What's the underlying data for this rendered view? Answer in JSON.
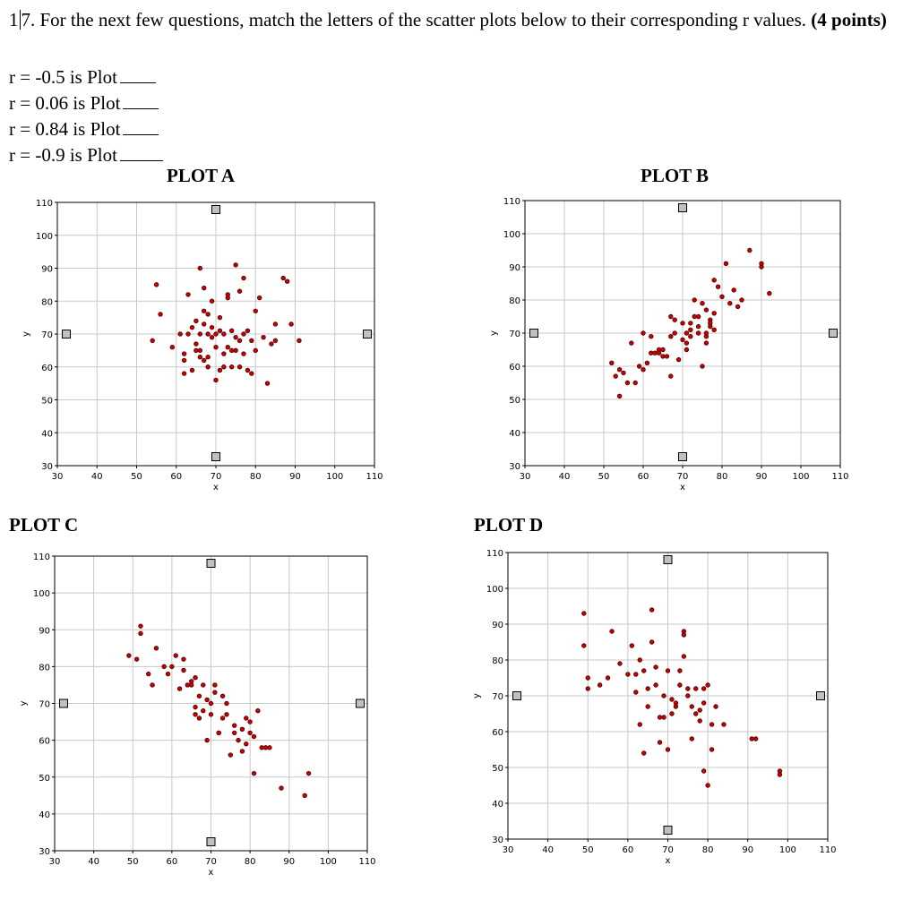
{
  "question": {
    "number_prefix": "1",
    "number_suffix": "7.",
    "text": " For the next few questions, match the letters of the scatter plots below to their corresponding r values. ",
    "points": "(4 points)"
  },
  "answers": [
    {
      "text": "r = -0.5 is Plot"
    },
    {
      "text": "r = 0.06 is Plot"
    },
    {
      "text": "r = 0.84 is Plot"
    },
    {
      "text": "r = -0.9 is Plot"
    }
  ],
  "colors": {
    "grid": "#c8c8c8",
    "point_fill": "#cc0000",
    "point_stroke": "#400000",
    "handle_fill": "#c0c0c0"
  },
  "chart_data": [
    {
      "type": "scatter",
      "title": "PLOT A",
      "xlabel": "x",
      "ylabel": "y",
      "xlim": [
        30,
        110
      ],
      "ylim": [
        30,
        110
      ],
      "xticks": [
        30,
        40,
        50,
        60,
        70,
        80,
        90,
        100,
        110
      ],
      "yticks": [
        30,
        40,
        50,
        60,
        70,
        80,
        90,
        100,
        110
      ],
      "grid": true,
      "x": [
        55,
        56,
        54,
        59,
        61,
        62,
        62,
        62,
        63,
        63,
        64,
        64,
        65,
        65,
        65,
        66,
        66,
        66,
        67,
        67,
        67,
        67,
        68,
        68,
        68,
        68,
        69,
        69,
        69,
        70,
        70,
        70,
        71,
        71,
        71,
        72,
        72,
        72,
        73,
        73,
        73,
        74,
        74,
        74,
        75,
        75,
        75,
        76,
        76,
        76,
        77,
        77,
        77,
        78,
        78,
        79,
        79,
        80,
        80,
        81,
        82,
        83,
        84,
        85,
        85,
        87,
        88,
        89,
        91,
        66
      ],
      "y": [
        85,
        76,
        68,
        66,
        70,
        58,
        64,
        62,
        70,
        82,
        59,
        72,
        67,
        65,
        74,
        63,
        70,
        90,
        77,
        73,
        62,
        84,
        60,
        63,
        76,
        70,
        69,
        80,
        72,
        56,
        66,
        70,
        75,
        59,
        71,
        64,
        60,
        70,
        81,
        66,
        82,
        60,
        65,
        71,
        91,
        65,
        69,
        60,
        68,
        83,
        64,
        70,
        87,
        59,
        71,
        58,
        68,
        77,
        65,
        81,
        69,
        55,
        67,
        68,
        73,
        87,
        86,
        73,
        68,
        65
      ]
    },
    {
      "type": "scatter",
      "title": "PLOT B",
      "xlabel": "x",
      "ylabel": "y",
      "xlim": [
        30,
        110
      ],
      "ylim": [
        30,
        110
      ],
      "xticks": [
        30,
        40,
        50,
        60,
        70,
        80,
        90,
        100,
        110
      ],
      "yticks": [
        30,
        40,
        50,
        60,
        70,
        80,
        90,
        100,
        110
      ],
      "grid": true,
      "x": [
        52,
        53,
        54,
        54,
        55,
        56,
        57,
        58,
        59,
        60,
        60,
        61,
        62,
        62,
        63,
        64,
        64,
        65,
        65,
        66,
        67,
        67,
        67,
        68,
        68,
        69,
        70,
        70,
        71,
        71,
        71,
        72,
        72,
        72,
        73,
        73,
        74,
        74,
        74,
        75,
        75,
        76,
        76,
        76,
        77,
        77,
        77,
        78,
        78,
        78,
        79,
        80,
        81,
        82,
        83,
        84,
        85,
        87,
        90,
        90,
        92,
        76
      ],
      "y": [
        61,
        57,
        51,
        59,
        58,
        55,
        67,
        55,
        60,
        59,
        70,
        61,
        64,
        69,
        64,
        65,
        64,
        65,
        63,
        63,
        75,
        69,
        57,
        70,
        74,
        62,
        73,
        68,
        70,
        67,
        65,
        73,
        71,
        69,
        75,
        80,
        70,
        72,
        75,
        60,
        79,
        70,
        69,
        77,
        74,
        72,
        73,
        76,
        71,
        86,
        84,
        81,
        91,
        79,
        83,
        78,
        80,
        95,
        90,
        91,
        82,
        67
      ]
    },
    {
      "type": "scatter",
      "title": "PLOT C",
      "xlabel": "x",
      "ylabel": "y",
      "xlim": [
        30,
        110
      ],
      "ylim": [
        30,
        110
      ],
      "xticks": [
        30,
        40,
        50,
        60,
        70,
        80,
        90,
        100,
        110
      ],
      "yticks": [
        30,
        40,
        50,
        60,
        70,
        80,
        90,
        100,
        110
      ],
      "grid": true,
      "x": [
        49,
        51,
        52,
        52,
        54,
        55,
        56,
        58,
        59,
        60,
        61,
        62,
        63,
        63,
        64,
        65,
        65,
        66,
        66,
        66,
        67,
        67,
        68,
        68,
        69,
        69,
        70,
        70,
        71,
        71,
        72,
        73,
        73,
        74,
        74,
        75,
        76,
        76,
        77,
        78,
        78,
        79,
        79,
        80,
        80,
        81,
        81,
        82,
        83,
        84,
        85,
        88,
        94,
        95,
        72
      ],
      "y": [
        83,
        82,
        89,
        91,
        78,
        75,
        85,
        80,
        78,
        80,
        83,
        74,
        79,
        82,
        75,
        76,
        75,
        67,
        69,
        77,
        66,
        72,
        68,
        75,
        71,
        60,
        70,
        67,
        73,
        75,
        62,
        66,
        72,
        70,
        67,
        56,
        64,
        62,
        60,
        57,
        63,
        66,
        59,
        65,
        62,
        61,
        51,
        68,
        58,
        58,
        58,
        47,
        45,
        51,
        62
      ]
    },
    {
      "type": "scatter",
      "title": "PLOT D",
      "xlabel": "x",
      "ylabel": "y",
      "xlim": [
        30,
        110
      ],
      "ylim": [
        30,
        110
      ],
      "xticks": [
        30,
        40,
        50,
        60,
        70,
        80,
        90,
        100,
        110
      ],
      "yticks": [
        30,
        40,
        50,
        60,
        70,
        80,
        90,
        100,
        110
      ],
      "grid": true,
      "x": [
        49,
        49,
        50,
        50,
        53,
        55,
        56,
        58,
        60,
        61,
        62,
        62,
        63,
        63,
        64,
        64,
        65,
        65,
        66,
        66,
        67,
        67,
        68,
        68,
        69,
        69,
        70,
        70,
        71,
        71,
        72,
        72,
        73,
        73,
        74,
        74,
        74,
        75,
        75,
        76,
        76,
        77,
        77,
        78,
        78,
        79,
        79,
        80,
        80,
        81,
        81,
        82,
        84,
        91,
        92,
        98,
        98,
        79
      ],
      "y": [
        93,
        84,
        75,
        72,
        73,
        75,
        88,
        79,
        76,
        84,
        76,
        71,
        62,
        80,
        54,
        77,
        72,
        67,
        85,
        94,
        78,
        73,
        57,
        64,
        70,
        64,
        77,
        55,
        69,
        65,
        68,
        67,
        77,
        73,
        88,
        87,
        81,
        72,
        70,
        58,
        67,
        72,
        65,
        66,
        63,
        68,
        49,
        45,
        73,
        62,
        55,
        67,
        62,
        58,
        58,
        49,
        48,
        72
      ]
    }
  ]
}
